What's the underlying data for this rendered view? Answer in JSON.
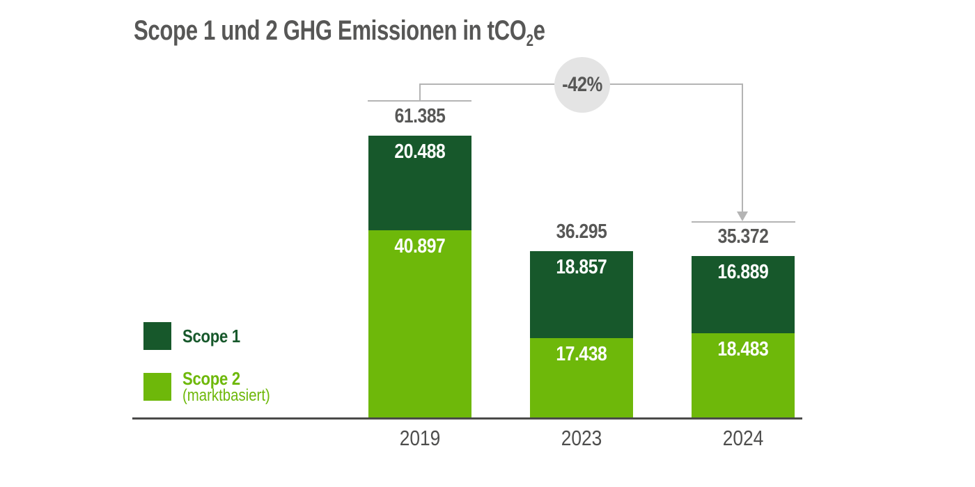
{
  "title": {
    "text_before_sub": "Scope 1 und 2 GHG Emissionen in tCO",
    "sub": "2",
    "text_after_sub": "e"
  },
  "annotation": {
    "label": "-42%",
    "from_category": "2019",
    "to_category": "2024"
  },
  "legend": {
    "items": [
      {
        "label": "Scope 1",
        "color": "#17582B"
      },
      {
        "label": "Scope 2",
        "sublabel": "(marktbasiert)",
        "color": "#6EB80A"
      }
    ]
  },
  "colors": {
    "scope1_dark_green": "#17582B",
    "scope2_light_green": "#6EB80A",
    "title_gray": "#575756",
    "year_label_gray": "#4E4E4D",
    "axis_gray": "#4A4A49",
    "bracket_gray": "#B4B4B4",
    "badge_circle_gray": "#E4E4E4",
    "inside_bar_label": "#ffffff"
  },
  "chart_data": {
    "type": "bar",
    "stacked": true,
    "title": "Scope 1 und 2 GHG Emissionen in tCO2e",
    "unit": "tCO2e",
    "categories": [
      "2019",
      "2023",
      "2024"
    ],
    "series": [
      {
        "name": "Scope 1",
        "position": "top",
        "color": "#17582B",
        "values": [
          20488,
          18857,
          16889
        ],
        "labels": [
          "20.488",
          "18.857",
          "16.889"
        ]
      },
      {
        "name": "Scope 2 (marktbasiert)",
        "position": "bottom",
        "color": "#6EB80A",
        "values": [
          40897,
          17438,
          18483
        ],
        "labels": [
          "40.897",
          "17.438",
          "18.483"
        ]
      }
    ],
    "totals": [
      61385,
      36295,
      35372
    ],
    "total_labels": [
      "61.385",
      "36.295",
      "35.372"
    ],
    "annotation_label": "-42%",
    "ylim": [
      0,
      61385
    ],
    "grid": false,
    "legend_position": "left"
  }
}
